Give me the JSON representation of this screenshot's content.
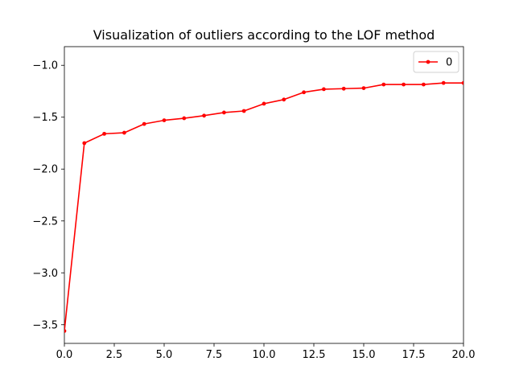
{
  "chart_data": {
    "type": "line",
    "title": "Visualization of outliers according to the LOF method",
    "xlabel": "",
    "ylabel": "",
    "xlim": [
      0,
      20
    ],
    "ylim": [
      -3.68,
      -0.82
    ],
    "grid": false,
    "legend": {
      "placement": "top-right",
      "entries": [
        "0"
      ]
    },
    "x_ticks": [
      0,
      2.5,
      5,
      7.5,
      10,
      12.5,
      15,
      17.5,
      20
    ],
    "x_tick_labels": [
      "0.0",
      "2.5",
      "5.0",
      "7.5",
      "10.0",
      "12.5",
      "15.0",
      "17.5",
      "20.0"
    ],
    "y_ticks": [
      -3.5,
      -3.0,
      -2.5,
      -2.0,
      -1.5,
      -1.0
    ],
    "y_tick_labels": [
      "−3.5",
      "−3.0",
      "−2.5",
      "−2.0",
      "−1.5",
      "−1.0"
    ],
    "series": [
      {
        "name": "0",
        "color": "#ff0000",
        "x": [
          0,
          1,
          2,
          3,
          4,
          5,
          6,
          7,
          8,
          9,
          10,
          11,
          12,
          13,
          14,
          15,
          16,
          17,
          18,
          19,
          20
        ],
        "values": [
          -3.56,
          -1.75,
          -1.66,
          -1.65,
          -1.565,
          -1.53,
          -1.51,
          -1.485,
          -1.455,
          -1.44,
          -1.37,
          -1.33,
          -1.26,
          -1.23,
          -1.225,
          -1.22,
          -1.185,
          -1.185,
          -1.185,
          -1.17,
          -1.17
        ]
      }
    ]
  }
}
